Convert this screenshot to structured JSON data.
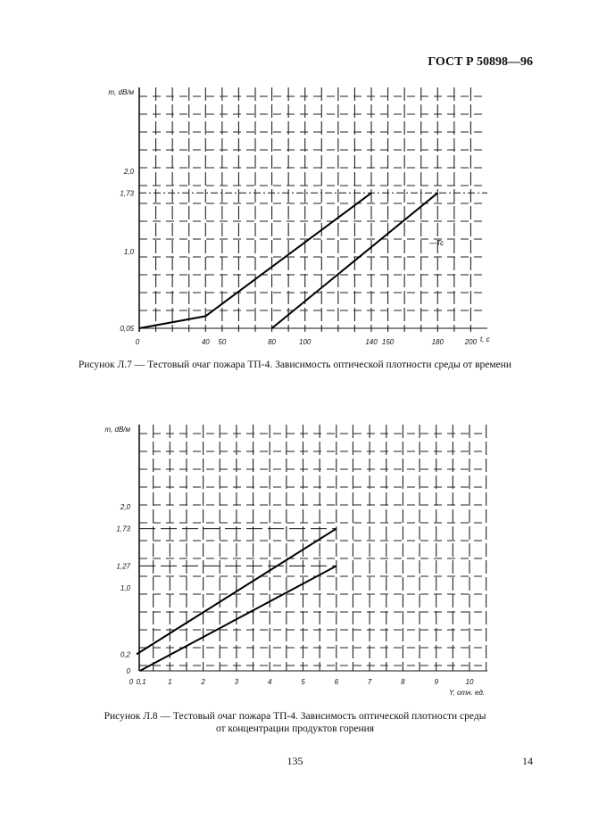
{
  "header": {
    "standard": "ГОСТ Р 50898—96"
  },
  "figures": [
    {
      "caption": "Рисунок Л.7 — Тестовый очаг пожара ТП-4. Зависимость оптической плотности среды от времени",
      "chart_data": {
        "type": "line",
        "ylabel": "m, dB/м",
        "xlabel": "t, с",
        "x_ticks": [
          "0",
          "40",
          "50",
          "80",
          "100",
          "140",
          "150",
          "180",
          "200"
        ],
        "y_ticks": [
          "0,05",
          "1,0",
          "1,73",
          "2,0"
        ],
        "annotation": "T_c",
        "reference_level": 1.73,
        "series": [
          {
            "x": [
              0,
              40,
              140
            ],
            "y": [
              0.05,
              0.2,
              1.73
            ]
          },
          {
            "x": [
              80,
              180
            ],
            "y": [
              0.05,
              1.73
            ]
          }
        ]
      }
    },
    {
      "caption_line1": "Рисунок Л.8 — Тестовый очаг пожара ТП-4. Зависимость оптической плотности среды",
      "caption_line2": "от концентрации продуктов горения",
      "chart_data": {
        "type": "line",
        "ylabel": "m, dB/м",
        "xlabel": "Y, отн. ед.",
        "x_ticks": [
          "0",
          "0,1",
          "1",
          "2",
          "3",
          "4",
          "5",
          "6",
          "7",
          "8",
          "9",
          "10"
        ],
        "y_ticks": [
          "0",
          "0,2",
          "1,0",
          "1,27",
          "1,73",
          "2,0"
        ],
        "reference_levels": [
          1.27,
          1.73
        ],
        "series": [
          {
            "x": [
              0,
              6
            ],
            "y": [
              0.2,
              1.73
            ]
          },
          {
            "x": [
              0.1,
              6
            ],
            "y": [
              0,
              1.27
            ]
          }
        ]
      }
    }
  ],
  "footer": {
    "page": "135",
    "sheet": "14"
  }
}
